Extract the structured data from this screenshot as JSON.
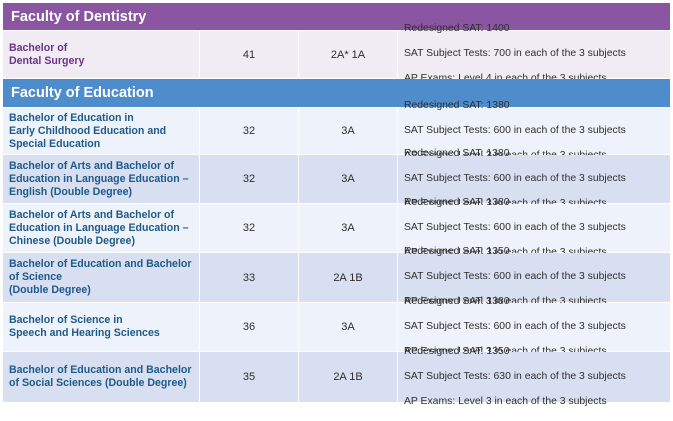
{
  "dentistry": {
    "header": "Faculty of Dentistry",
    "rows": [
      {
        "programme": [
          "Bachelor of",
          "Dental Surgery"
        ],
        "score": "41",
        "grades": "2A* 1A",
        "requirements": [
          "Redesigned SAT: 1400",
          "SAT Subject Tests: 700 in each of the 3 subjects",
          "AP Exams: Level 4 in each of the 3 subjects"
        ]
      }
    ]
  },
  "education": {
    "header": "Faculty of Education",
    "rows": [
      {
        "programme": [
          "Bachelor of Education in",
          "Early Childhood Education and",
          "Special Education"
        ],
        "score": "32",
        "grades": "3A",
        "requirements": [
          "Redesigned SAT: 1380",
          "SAT Subject Tests: 600 in each of the 3 subjects",
          "AP Exams: Level 3 in each of the 3 subjects"
        ]
      },
      {
        "programme": [
          "Bachelor of Arts and Bachelor of",
          "Education in Language Education –",
          "English (Double Degree)"
        ],
        "score": "32",
        "grades": "3A",
        "requirements": [
          "Redesigned SAT: 1380",
          "SAT Subject Tests: 600 in each of the 3 subjects",
          "AP Exams: Level 3 in each of the 3 subjects"
        ]
      },
      {
        "programme": [
          "Bachelor of Arts and Bachelor of",
          "Education in Language Education –",
          "Chinese (Double Degree)"
        ],
        "score": "32",
        "grades": "3A",
        "requirements": [
          "Redesigned SAT: 1380",
          "SAT Subject Tests: 600 in each of the 3 subjects",
          "AP Exams: Level 3 in each of the 3 subjects"
        ]
      },
      {
        "programme": [
          "Bachelor of Education and Bachelor",
          "of Science",
          "(Double Degree)"
        ],
        "score": "33",
        "grades": "2A 1B",
        "requirements": [
          "Redesigned SAT: 1350",
          "SAT Subject Tests: 600 in each of the 3 subjects",
          "AP Exams: Level 3 in each of the 3 subjects"
        ]
      },
      {
        "programme": [
          "Bachelor of Science in",
          "Speech and Hearing Sciences"
        ],
        "score": "36",
        "grades": "3A",
        "requirements": [
          "Redesigned SAT: 1380",
          "SAT Subject Tests: 600 in each of the 3 subjects",
          "AP Exams: Level 3 in each of the 3 subjects"
        ]
      },
      {
        "programme": [
          "Bachelor of Education and Bachelor",
          "of Social Sciences (Double Degree)"
        ],
        "score": "35",
        "grades": "2A 1B",
        "requirements": [
          "Redesigned SAT: 1350",
          "SAT Subject Tests: 630 in each of the 3 subjects",
          "AP Exams: Level 3 in each of the 3 subjects"
        ]
      }
    ]
  }
}
